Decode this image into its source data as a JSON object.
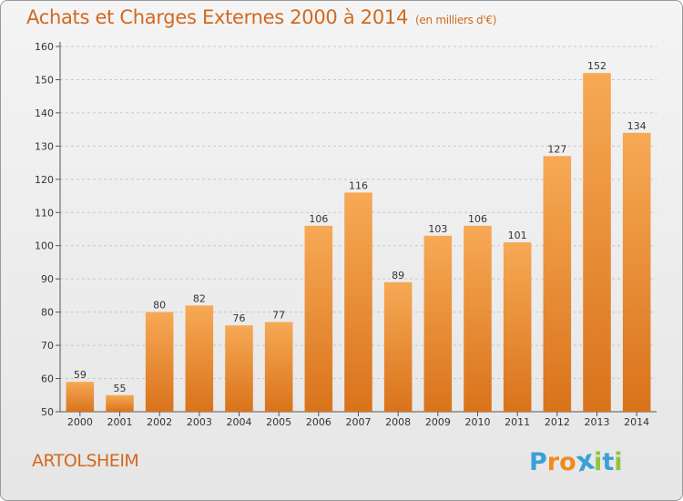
{
  "header": {
    "title": "Achats et Charges Externes 2000 à 2014",
    "subtitle": "(en milliers d'€)"
  },
  "footer": {
    "city": "ARTOLSHEIM",
    "logo_text": [
      "P",
      "r",
      "o",
      "x",
      "i",
      "t",
      "i"
    ]
  },
  "colors": {
    "title": "#d2691e",
    "bar_top": "#f7a955",
    "bar_bottom": "#d9731b",
    "logo": [
      "#3aa0d8",
      "#f08a1c",
      "#f08a1c",
      "#3aa0d8",
      "#8cc63f",
      "#3aa0d8",
      "#8cc63f"
    ]
  },
  "chart_data": {
    "type": "bar",
    "title": "Achats et Charges Externes 2000 à 2014",
    "categories": [
      "2000",
      "2001",
      "2002",
      "2003",
      "2004",
      "2005",
      "2006",
      "2007",
      "2008",
      "2009",
      "2010",
      "2011",
      "2012",
      "2013",
      "2014"
    ],
    "values": [
      59,
      55,
      80,
      82,
      76,
      77,
      106,
      116,
      89,
      103,
      106,
      101,
      127,
      152,
      134
    ],
    "ylim": [
      50,
      160
    ],
    "yticks": [
      50,
      60,
      70,
      80,
      90,
      100,
      110,
      120,
      130,
      140,
      150,
      160
    ],
    "grid": true,
    "xlabel": "",
    "ylabel": ""
  }
}
